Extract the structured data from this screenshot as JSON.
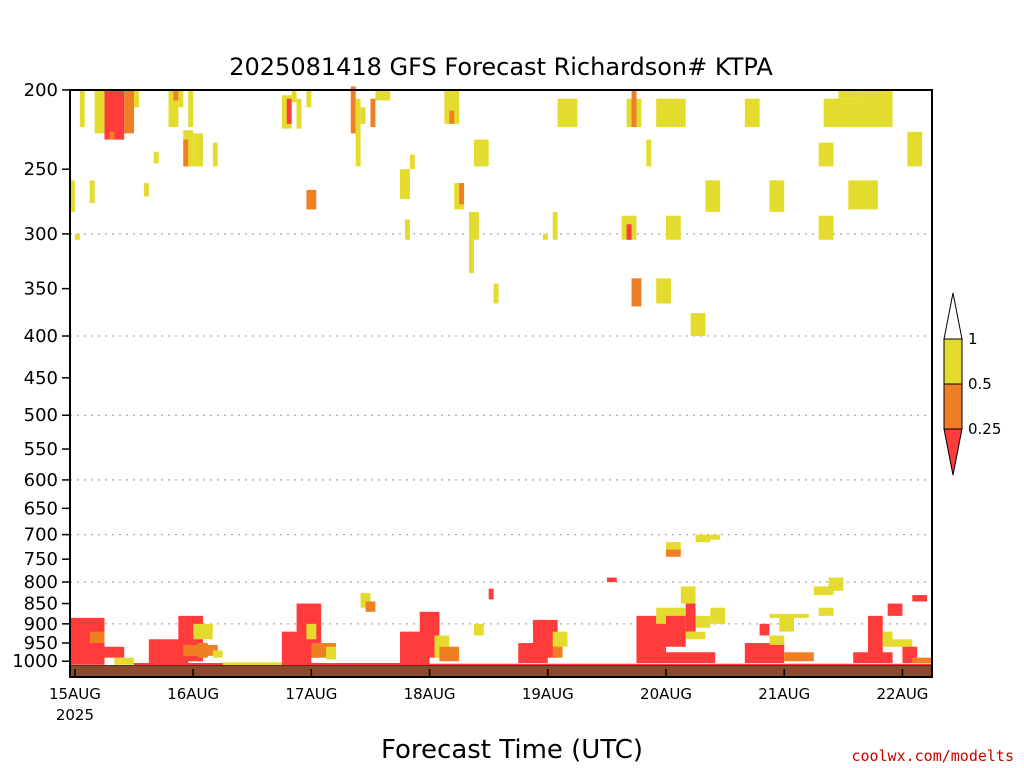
{
  "colors": {
    "ri_lt_025": "#ff3b3b",
    "ri_025_05": "#f07f24",
    "ri_05_1": "#e3dc2e",
    "ri_gt_1": "#ffffff",
    "ground": "#8b4a2b",
    "grid": "#aaaaaa",
    "credit": "#cc0000"
  },
  "credit": "coolwx.com/modelts",
  "chart_data": {
    "type": "heatmap",
    "title": "2025081418 GFS Forecast Richardson# KTPA",
    "xlabel": "Forecast Time (UTC)",
    "ylabel": "",
    "x_axis": {
      "unit": "hours since 2025-08-15 00 UTC",
      "range": [
        -1,
        174
      ],
      "ticks": [
        {
          "label": "15AUG",
          "sub": "2025",
          "x": 0
        },
        {
          "label": "16AUG",
          "sub": "",
          "x": 24
        },
        {
          "label": "17AUG",
          "sub": "",
          "x": 48
        },
        {
          "label": "18AUG",
          "sub": "",
          "x": 72
        },
        {
          "label": "19AUG",
          "sub": "",
          "x": 96
        },
        {
          "label": "20AUG",
          "sub": "",
          "x": 120
        },
        {
          "label": "21AUG",
          "sub": "",
          "x": 144
        },
        {
          "label": "22AUG",
          "sub": "",
          "x": 168
        }
      ]
    },
    "y_axis": {
      "unit": "hPa",
      "range": [
        1025,
        200
      ],
      "ticks": [
        "200",
        "250",
        "300",
        "350",
        "400",
        "450",
        "500",
        "550",
        "600",
        "650",
        "700",
        "750",
        "800",
        "850",
        "900",
        "950",
        "1000"
      ],
      "gridlines": [
        300,
        400,
        500,
        600,
        700,
        800,
        900
      ]
    },
    "legend": {
      "placement": "right",
      "labels": [
        "1",
        "0.5",
        "0.25"
      ],
      "bins": [
        "< 0.25",
        "0.25 - 0.5",
        "0.5 - 1",
        "> 1"
      ]
    },
    "ground_level": 1012,
    "cells": [
      {
        "x0": 6,
        "x1": 10,
        "p0": 200,
        "p1": 230,
        "v": "r"
      },
      {
        "x0": 4,
        "x1": 6,
        "p0": 200,
        "p1": 226,
        "v": "y"
      },
      {
        "x0": 10,
        "x1": 12,
        "p0": 200,
        "p1": 226,
        "v": "o"
      },
      {
        "x0": 12,
        "x1": 13,
        "p0": 200,
        "p1": 210,
        "v": "y"
      },
      {
        "x0": 7,
        "x1": 8,
        "p0": 225,
        "p1": 230,
        "v": "o"
      },
      {
        "x0": 1,
        "x1": 2,
        "p0": 200,
        "p1": 222,
        "v": "y"
      },
      {
        "x0": -1,
        "x1": 0,
        "p0": 258,
        "p1": 282,
        "v": "y"
      },
      {
        "x0": 3,
        "x1": 4,
        "p0": 258,
        "p1": 275,
        "v": "y"
      },
      {
        "x0": 0,
        "x1": 1,
        "p0": 300,
        "p1": 305,
        "v": "y"
      },
      {
        "x0": 19,
        "x1": 21,
        "p0": 200,
        "p1": 222,
        "v": "y"
      },
      {
        "x0": 20,
        "x1": 21,
        "p0": 200,
        "p1": 206,
        "v": "o"
      },
      {
        "x0": 22,
        "x1": 24,
        "p0": 224,
        "p1": 248,
        "v": "y"
      },
      {
        "x0": 22,
        "x1": 23,
        "p0": 230,
        "p1": 248,
        "v": "o"
      },
      {
        "x0": 24,
        "x1": 26,
        "p0": 226,
        "p1": 248,
        "v": "y"
      },
      {
        "x0": 21,
        "x1": 22,
        "p0": 200,
        "p1": 210,
        "v": "y"
      },
      {
        "x0": 23,
        "x1": 24,
        "p0": 200,
        "p1": 222,
        "v": "y"
      },
      {
        "x0": 16,
        "x1": 17,
        "p0": 238,
        "p1": 246,
        "v": "y"
      },
      {
        "x0": 14,
        "x1": 15,
        "p0": 260,
        "p1": 270,
        "v": "y"
      },
      {
        "x0": 28,
        "x1": 29,
        "p0": 232,
        "p1": 248,
        "v": "y"
      },
      {
        "x0": 42,
        "x1": 44,
        "p0": 203,
        "p1": 223,
        "v": "y"
      },
      {
        "x0": 43,
        "x1": 44,
        "p0": 205,
        "p1": 220,
        "v": "r"
      },
      {
        "x0": 44,
        "x1": 45,
        "p0": 200,
        "p1": 207,
        "v": "y"
      },
      {
        "x0": 45,
        "x1": 46,
        "p0": 205,
        "p1": 223,
        "v": "y"
      },
      {
        "x0": 47,
        "x1": 48,
        "p0": 200,
        "p1": 210,
        "v": "y"
      },
      {
        "x0": 47,
        "x1": 49,
        "p0": 265,
        "p1": 280,
        "v": "o"
      },
      {
        "x0": 56,
        "x1": 57,
        "p0": 198,
        "p1": 226,
        "v": "o"
      },
      {
        "x0": 57,
        "x1": 58,
        "p0": 205,
        "p1": 248,
        "v": "y"
      },
      {
        "x0": 60,
        "x1": 61,
        "p0": 205,
        "p1": 222,
        "v": "o"
      },
      {
        "x0": 61,
        "x1": 64,
        "p0": 200,
        "p1": 206,
        "v": "y"
      },
      {
        "x0": 58,
        "x1": 59,
        "p0": 210,
        "p1": 220,
        "v": "y"
      },
      {
        "x0": 66,
        "x1": 68,
        "p0": 250,
        "p1": 272,
        "v": "y"
      },
      {
        "x0": 68,
        "x1": 69,
        "p0": 240,
        "p1": 250,
        "v": "y"
      },
      {
        "x0": 67,
        "x1": 68,
        "p0": 288,
        "p1": 305,
        "v": "y"
      },
      {
        "x0": 75,
        "x1": 78,
        "p0": 200,
        "p1": 220,
        "v": "y"
      },
      {
        "x0": 76,
        "x1": 77,
        "p0": 212,
        "p1": 220,
        "v": "o"
      },
      {
        "x0": 77,
        "x1": 79,
        "p0": 260,
        "p1": 280,
        "v": "y"
      },
      {
        "x0": 78,
        "x1": 79,
        "p0": 260,
        "p1": 276,
        "v": "o"
      },
      {
        "x0": 80,
        "x1": 82,
        "p0": 282,
        "p1": 305,
        "v": "y"
      },
      {
        "x0": 80,
        "x1": 81,
        "p0": 305,
        "p1": 335,
        "v": "y"
      },
      {
        "x0": 81,
        "x1": 84,
        "p0": 230,
        "p1": 248,
        "v": "y"
      },
      {
        "x0": 85,
        "x1": 86,
        "p0": 345,
        "p1": 365,
        "v": "y"
      },
      {
        "x0": 98,
        "x1": 102,
        "p0": 205,
        "p1": 222,
        "v": "y"
      },
      {
        "x0": 95,
        "x1": 96,
        "p0": 300,
        "p1": 305,
        "v": "y"
      },
      {
        "x0": 97,
        "x1": 98,
        "p0": 282,
        "p1": 305,
        "v": "y"
      },
      {
        "x0": 112,
        "x1": 115,
        "p0": 205,
        "p1": 222,
        "v": "y"
      },
      {
        "x0": 113,
        "x1": 114,
        "p0": 200,
        "p1": 222,
        "v": "o"
      },
      {
        "x0": 111,
        "x1": 114,
        "p0": 285,
        "p1": 305,
        "v": "y"
      },
      {
        "x0": 112,
        "x1": 113,
        "p0": 292,
        "p1": 305,
        "v": "r"
      },
      {
        "x0": 113,
        "x1": 115,
        "p0": 340,
        "p1": 368,
        "v": "o"
      },
      {
        "x0": 116,
        "x1": 117,
        "p0": 230,
        "p1": 248,
        "v": "y"
      },
      {
        "x0": 118,
        "x1": 124,
        "p0": 205,
        "p1": 222,
        "v": "y"
      },
      {
        "x0": 118,
        "x1": 121,
        "p0": 340,
        "p1": 365,
        "v": "y"
      },
      {
        "x0": 120,
        "x1": 123,
        "p0": 285,
        "p1": 305,
        "v": "y"
      },
      {
        "x0": 128,
        "x1": 131,
        "p0": 258,
        "p1": 282,
        "v": "y"
      },
      {
        "x0": 125,
        "x1": 128,
        "p0": 375,
        "p1": 400,
        "v": "y"
      },
      {
        "x0": 136,
        "x1": 139,
        "p0": 205,
        "p1": 222,
        "v": "y"
      },
      {
        "x0": 141,
        "x1": 144,
        "p0": 258,
        "p1": 282,
        "v": "y"
      },
      {
        "x0": 151,
        "x1": 154,
        "p0": 232,
        "p1": 248,
        "v": "y"
      },
      {
        "x0": 151,
        "x1": 154,
        "p0": 285,
        "p1": 305,
        "v": "y"
      },
      {
        "x0": 152,
        "x1": 159,
        "p0": 205,
        "p1": 222,
        "v": "y"
      },
      {
        "x0": 155,
        "x1": 159,
        "p0": 200,
        "p1": 205,
        "v": "y"
      },
      {
        "x0": 159,
        "x1": 166,
        "p0": 200,
        "p1": 222,
        "v": "y"
      },
      {
        "x0": 157,
        "x1": 163,
        "p0": 258,
        "p1": 280,
        "v": "y"
      },
      {
        "x0": 169,
        "x1": 172,
        "p0": 225,
        "p1": 248,
        "v": "y"
      },
      {
        "x0": -1,
        "x1": 6,
        "p0": 885,
        "p1": 1010,
        "v": "r"
      },
      {
        "x0": 3,
        "x1": 6,
        "p0": 920,
        "p1": 950,
        "v": "o"
      },
      {
        "x0": 5,
        "x1": 10,
        "p0": 960,
        "p1": 990,
        "v": "r"
      },
      {
        "x0": 8,
        "x1": 12,
        "p0": 990,
        "p1": 1010,
        "v": "y"
      },
      {
        "x0": 21,
        "x1": 26,
        "p0": 880,
        "p1": 1000,
        "v": "r"
      },
      {
        "x0": 24,
        "x1": 28,
        "p0": 900,
        "p1": 940,
        "v": "y"
      },
      {
        "x0": 25,
        "x1": 27,
        "p0": 950,
        "p1": 990,
        "v": "o"
      },
      {
        "x0": 15,
        "x1": 23,
        "p0": 940,
        "p1": 1005,
        "v": "r"
      },
      {
        "x0": 22,
        "x1": 29,
        "p0": 955,
        "p1": 985,
        "v": "o"
      },
      {
        "x0": 28,
        "x1": 30,
        "p0": 970,
        "p1": 990,
        "v": "y"
      },
      {
        "x0": 45,
        "x1": 50,
        "p0": 850,
        "p1": 990,
        "v": "r"
      },
      {
        "x0": 42,
        "x1": 48,
        "p0": 920,
        "p1": 1005,
        "v": "r"
      },
      {
        "x0": 47,
        "x1": 49,
        "p0": 900,
        "p1": 940,
        "v": "y"
      },
      {
        "x0": 48,
        "x1": 53,
        "p0": 950,
        "p1": 990,
        "v": "o"
      },
      {
        "x0": 51,
        "x1": 53,
        "p0": 960,
        "p1": 995,
        "v": "y"
      },
      {
        "x0": 58,
        "x1": 60,
        "p0": 825,
        "p1": 860,
        "v": "y"
      },
      {
        "x0": 59,
        "x1": 61,
        "p0": 845,
        "p1": 870,
        "v": "o"
      },
      {
        "x0": 70,
        "x1": 74,
        "p0": 870,
        "p1": 990,
        "v": "r"
      },
      {
        "x0": 66,
        "x1": 72,
        "p0": 920,
        "p1": 1005,
        "v": "r"
      },
      {
        "x0": 73,
        "x1": 76,
        "p0": 930,
        "p1": 990,
        "v": "y"
      },
      {
        "x0": 74,
        "x1": 78,
        "p0": 960,
        "p1": 1000,
        "v": "o"
      },
      {
        "x0": 81,
        "x1": 83,
        "p0": 900,
        "p1": 930,
        "v": "y"
      },
      {
        "x0": 84,
        "x1": 85,
        "p0": 815,
        "p1": 840,
        "v": "r"
      },
      {
        "x0": 93,
        "x1": 98,
        "p0": 890,
        "p1": 990,
        "v": "r"
      },
      {
        "x0": 90,
        "x1": 96,
        "p0": 950,
        "p1": 1005,
        "v": "r"
      },
      {
        "x0": 97,
        "x1": 100,
        "p0": 920,
        "p1": 960,
        "v": "y"
      },
      {
        "x0": 97,
        "x1": 99,
        "p0": 960,
        "p1": 990,
        "v": "o"
      },
      {
        "x0": 108,
        "x1": 110,
        "p0": 790,
        "p1": 800,
        "v": "r"
      },
      {
        "x0": 114,
        "x1": 120,
        "p0": 880,
        "p1": 1005,
        "v": "r"
      },
      {
        "x0": 118,
        "x1": 124,
        "p0": 860,
        "p1": 900,
        "v": "y"
      },
      {
        "x0": 120,
        "x1": 124,
        "p0": 880,
        "p1": 960,
        "v": "r"
      },
      {
        "x0": 120,
        "x1": 123,
        "p0": 730,
        "p1": 745,
        "v": "o"
      },
      {
        "x0": 120,
        "x1": 123,
        "p0": 715,
        "p1": 730,
        "v": "y"
      },
      {
        "x0": 123,
        "x1": 126,
        "p0": 810,
        "p1": 850,
        "v": "y"
      },
      {
        "x0": 124,
        "x1": 126,
        "p0": 850,
        "p1": 920,
        "v": "r"
      },
      {
        "x0": 124,
        "x1": 128,
        "p0": 920,
        "p1": 940,
        "v": "y"
      },
      {
        "x0": 126,
        "x1": 129,
        "p0": 880,
        "p1": 910,
        "v": "y"
      },
      {
        "x0": 126,
        "x1": 129,
        "p0": 700,
        "p1": 715,
        "v": "y"
      },
      {
        "x0": 129,
        "x1": 131,
        "p0": 700,
        "p1": 710,
        "v": "y"
      },
      {
        "x0": 129,
        "x1": 132,
        "p0": 860,
        "p1": 900,
        "v": "y"
      },
      {
        "x0": 118,
        "x1": 130,
        "p0": 975,
        "p1": 1005,
        "v": "r"
      },
      {
        "x0": 139,
        "x1": 141,
        "p0": 900,
        "p1": 930,
        "v": "r"
      },
      {
        "x0": 143,
        "x1": 146,
        "p0": 880,
        "p1": 920,
        "v": "y"
      },
      {
        "x0": 141,
        "x1": 149,
        "p0": 875,
        "p1": 885,
        "v": "y"
      },
      {
        "x0": 136,
        "x1": 144,
        "p0": 950,
        "p1": 1005,
        "v": "r"
      },
      {
        "x0": 141,
        "x1": 144,
        "p0": 930,
        "p1": 955,
        "v": "y"
      },
      {
        "x0": 144,
        "x1": 150,
        "p0": 975,
        "p1": 1000,
        "v": "o"
      },
      {
        "x0": 150,
        "x1": 154,
        "p0": 810,
        "p1": 830,
        "v": "y"
      },
      {
        "x0": 153,
        "x1": 156,
        "p0": 790,
        "p1": 820,
        "v": "y"
      },
      {
        "x0": 151,
        "x1": 154,
        "p0": 860,
        "p1": 880,
        "v": "y"
      },
      {
        "x0": 161,
        "x1": 164,
        "p0": 880,
        "p1": 1000,
        "v": "r"
      },
      {
        "x0": 164,
        "x1": 166,
        "p0": 920,
        "p1": 960,
        "v": "y"
      },
      {
        "x0": 165,
        "x1": 168,
        "p0": 850,
        "p1": 880,
        "v": "r"
      },
      {
        "x0": 166,
        "x1": 170,
        "p0": 940,
        "p1": 960,
        "v": "y"
      },
      {
        "x0": 168,
        "x1": 171,
        "p0": 960,
        "p1": 1005,
        "v": "r"
      },
      {
        "x0": 170,
        "x1": 173,
        "p0": 830,
        "p1": 845,
        "v": "r"
      },
      {
        "x0": 158,
        "x1": 166,
        "p0": 975,
        "p1": 1005,
        "v": "r"
      },
      {
        "x0": 170,
        "x1": 174,
        "p0": 990,
        "p1": 1005,
        "v": "o"
      },
      {
        "x0": 12,
        "x1": 72,
        "p0": 1005,
        "p1": 1012,
        "v": "r"
      },
      {
        "x0": 30,
        "x1": 42,
        "p0": 1003,
        "p1": 1012,
        "v": "y"
      },
      {
        "x0": 72,
        "x1": 174,
        "p0": 1007,
        "p1": 1012,
        "v": "r"
      }
    ]
  }
}
